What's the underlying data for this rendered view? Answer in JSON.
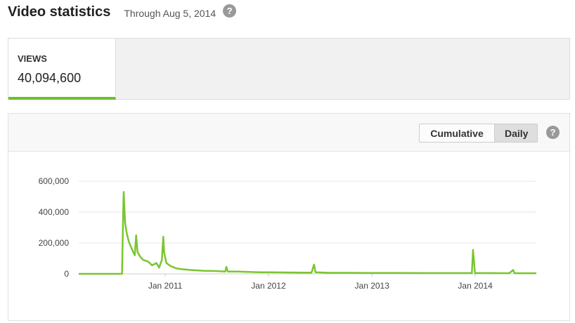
{
  "header": {
    "title": "Video statistics",
    "subtitle": "Through Aug 5, 2014",
    "help_icon": "?"
  },
  "metric": {
    "label": "VIEWS",
    "value": "40,094,600"
  },
  "toolbar": {
    "cumulative_label": "Cumulative",
    "daily_label": "Daily",
    "selected": "Daily",
    "help_icon": "?"
  },
  "colors": {
    "accent": "#6cbf2c",
    "line": "#7ac62f"
  },
  "chart_data": {
    "type": "line",
    "title": "",
    "xlabel": "",
    "ylabel": "",
    "ylim": [
      0,
      600000
    ],
    "yticks": [
      0,
      200000,
      400000,
      600000
    ],
    "ytick_labels": [
      "0",
      "200,000",
      "400,000",
      "600,000"
    ],
    "xlim": [
      "2010-03-01",
      "2014-08-05"
    ],
    "xticks": [
      "2011-01-01",
      "2012-01-01",
      "2013-01-01",
      "2014-01-01"
    ],
    "xtick_labels": [
      "Jan 2011",
      "Jan 2012",
      "Jan 2013",
      "Jan 2014"
    ],
    "grid": true,
    "legend": "none",
    "series": [
      {
        "x": [
          "2010-03-01",
          "2010-08-01",
          "2010-08-06",
          "2010-08-07",
          "2010-08-09",
          "2010-08-12",
          "2010-08-18",
          "2010-08-25",
          "2010-09-05",
          "2010-09-15",
          "2010-09-20",
          "2010-09-25",
          "2010-10-05",
          "2010-10-15",
          "2010-11-01",
          "2010-11-15",
          "2010-12-01",
          "2010-12-10",
          "2010-12-20",
          "2010-12-25",
          "2010-12-28",
          "2011-01-05",
          "2011-01-20",
          "2011-02-10",
          "2011-03-01",
          "2011-04-01",
          "2011-05-15",
          "2011-07-01",
          "2011-08-01",
          "2011-08-05",
          "2011-08-10",
          "2011-09-15",
          "2011-11-01",
          "2011-12-01",
          "2012-01-01",
          "2012-03-01",
          "2012-05-01",
          "2012-06-01",
          "2012-06-10",
          "2012-06-15",
          "2012-08-01",
          "2012-10-01",
          "2013-01-01",
          "2013-04-01",
          "2013-07-01",
          "2013-10-01",
          "2013-12-20",
          "2013-12-24",
          "2013-12-31",
          "2014-01-05",
          "2014-03-01",
          "2014-05-01",
          "2014-05-15",
          "2014-05-20",
          "2014-08-05"
        ],
        "values": [
          0,
          0,
          480000,
          530000,
          440000,
          330000,
          260000,
          210000,
          160000,
          120000,
          250000,
          140000,
          110000,
          90000,
          80000,
          55000,
          70000,
          40000,
          90000,
          240000,
          140000,
          70000,
          50000,
          35000,
          30000,
          25000,
          20000,
          18000,
          15000,
          45000,
          15000,
          15000,
          12000,
          10000,
          10000,
          9000,
          8000,
          8000,
          60000,
          10000,
          7000,
          7000,
          6000,
          6000,
          5000,
          5000,
          5000,
          155000,
          5000,
          5000,
          5000,
          4000,
          25000,
          4000,
          4000
        ]
      }
    ]
  }
}
